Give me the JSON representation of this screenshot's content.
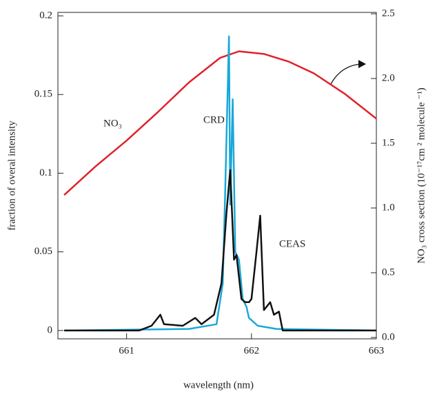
{
  "chart_data": {
    "type": "line",
    "xlabel": "wavelength (nm)",
    "ylabel": "fraction of overal intensity",
    "y2label": "NO₃ cross section (10⁻¹⁷cm ² molecule ⁻¹)",
    "xlim": [
      660.45,
      663.0
    ],
    "xticks": [
      661,
      662,
      663
    ],
    "ylim": [
      -0.0053,
      0.2022
    ],
    "yticks": [
      0,
      0.05,
      0.1,
      0.15,
      0.2
    ],
    "y2lim": [
      -0.0106,
      2.5106
    ],
    "y2ticks": [
      {
        "value": 0,
        "label": "0.0"
      },
      0.5,
      {
        "value": 1,
        "label": "1.0"
      },
      1.5,
      {
        "value": 2,
        "label": "2.0"
      },
      2.5
    ],
    "series": [
      {
        "name": "NO₃",
        "color": "#e0202a",
        "axis": "y2",
        "x": [
          660.5,
          660.75,
          661,
          661.25,
          661.5,
          661.75,
          661.9,
          662.1,
          662.3,
          662.5,
          662.75,
          663
        ],
        "values": [
          1.1,
          1.32,
          1.52,
          1.74,
          1.97,
          2.16,
          2.21,
          2.19,
          2.13,
          2.04,
          1.88,
          1.69
        ]
      },
      {
        "name": "CRD",
        "color": "#1aa8d8",
        "x": [
          660.5,
          661.5,
          661.72,
          661.77,
          661.79,
          661.82,
          661.83,
          661.85,
          661.87,
          661.9,
          661.93,
          661.96,
          661.98,
          662.05,
          662.2,
          663
        ],
        "values": [
          0,
          0.001,
          0.004,
          0.03,
          0.09,
          0.187,
          0.08,
          0.147,
          0.05,
          0.045,
          0.02,
          0.015,
          0.008,
          0.003,
          0.001,
          0
        ]
      },
      {
        "name": "CEAS",
        "color": "#111111",
        "x": [
          660.5,
          661.1,
          661.2,
          661.27,
          661.3,
          661.45,
          661.55,
          661.6,
          661.7,
          661.76,
          661.8,
          661.83,
          661.86,
          661.88,
          661.92,
          661.95,
          661.98,
          662.0,
          662.04,
          662.07,
          662.1,
          662.15,
          662.18,
          662.22,
          662.25,
          663
        ],
        "values": [
          0,
          0,
          0.003,
          0.01,
          0.004,
          0.003,
          0.008,
          0.004,
          0.01,
          0.03,
          0.075,
          0.102,
          0.045,
          0.048,
          0.02,
          0.018,
          0.018,
          0.02,
          0.05,
          0.073,
          0.013,
          0.018,
          0.01,
          0.012,
          0,
          0
        ]
      }
    ]
  }
}
